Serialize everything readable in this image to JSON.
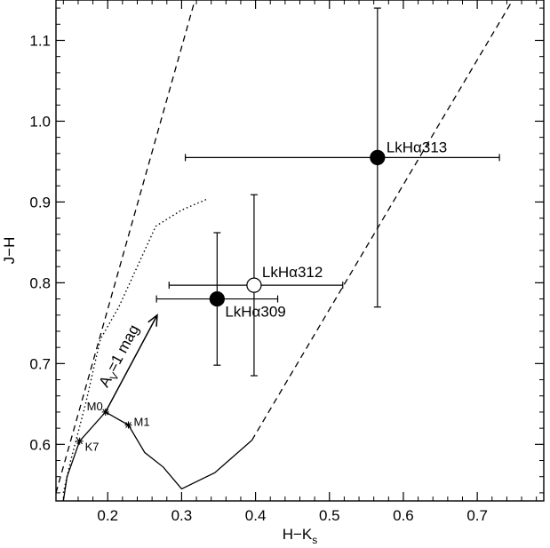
{
  "chart_data": {
    "type": "scatter",
    "title": "",
    "xlabel": "H−K",
    "xlabel_sub": "s",
    "ylabel": "J−H",
    "xlim": [
      0.13,
      0.79
    ],
    "ylim": [
      0.53,
      1.15
    ],
    "x_ticks": [
      0.2,
      0.3,
      0.4,
      0.5,
      0.6,
      0.7
    ],
    "x_tick_labels": [
      "0.2",
      "0.3",
      "0.4",
      "0.5",
      "0.6",
      "0.7"
    ],
    "y_ticks": [
      0.6,
      0.7,
      0.8,
      0.9,
      1.0,
      1.1
    ],
    "y_tick_labels": [
      "0.6",
      "0.7",
      "0.8",
      "0.9",
      "1.0",
      "1.1"
    ],
    "points": [
      {
        "name": "LkHα313",
        "x": 0.565,
        "y": 0.955,
        "xerr": [
          0.26,
          0.165
        ],
        "yerr": [
          0.185,
          0.185
        ],
        "filled": true
      },
      {
        "name": "LkHα312",
        "x": 0.398,
        "y": 0.797,
        "xerr": [
          0.115,
          0.12
        ],
        "yerr": [
          0.112,
          0.112
        ],
        "filled": false
      },
      {
        "name": "LkHα309",
        "x": 0.348,
        "y": 0.78,
        "xerr": [
          0.082,
          0.082
        ],
        "yerr": [
          0.082,
          0.082
        ],
        "filled": true
      }
    ],
    "main_sequence": [
      [
        0.14,
        0.53
      ],
      [
        0.145,
        0.56
      ],
      [
        0.162,
        0.604
      ],
      [
        0.197,
        0.64
      ],
      [
        0.228,
        0.624
      ],
      [
        0.25,
        0.59
      ],
      [
        0.275,
        0.572
      ],
      [
        0.3,
        0.545
      ],
      [
        0.345,
        0.565
      ],
      [
        0.395,
        0.605
      ]
    ],
    "spectral_types": [
      {
        "name": "K7",
        "x": 0.162,
        "y": 0.604
      },
      {
        "name": "M0",
        "x": 0.197,
        "y": 0.64
      },
      {
        "name": "M1",
        "x": 0.228,
        "y": 0.624
      }
    ],
    "giant_branch": [
      [
        0.14,
        0.54
      ],
      [
        0.15,
        0.58
      ],
      [
        0.17,
        0.65
      ],
      [
        0.19,
        0.73
      ],
      [
        0.215,
        0.77
      ],
      [
        0.24,
        0.82
      ],
      [
        0.265,
        0.87
      ],
      [
        0.3,
        0.89
      ],
      [
        0.333,
        0.903
      ]
    ],
    "reddening_lines": [
      {
        "from": [
          0.13,
          0.54
        ],
        "to": [
          0.318,
          1.15
        ]
      },
      {
        "from": [
          0.395,
          0.605
        ],
        "to": [
          0.748,
          1.15
        ]
      }
    ],
    "reddening_vector": {
      "from": [
        0.197,
        0.64
      ],
      "to": [
        0.267,
        0.76
      ],
      "label": "A",
      "label_sub": "V",
      "label_rest": "=1 mag"
    }
  }
}
